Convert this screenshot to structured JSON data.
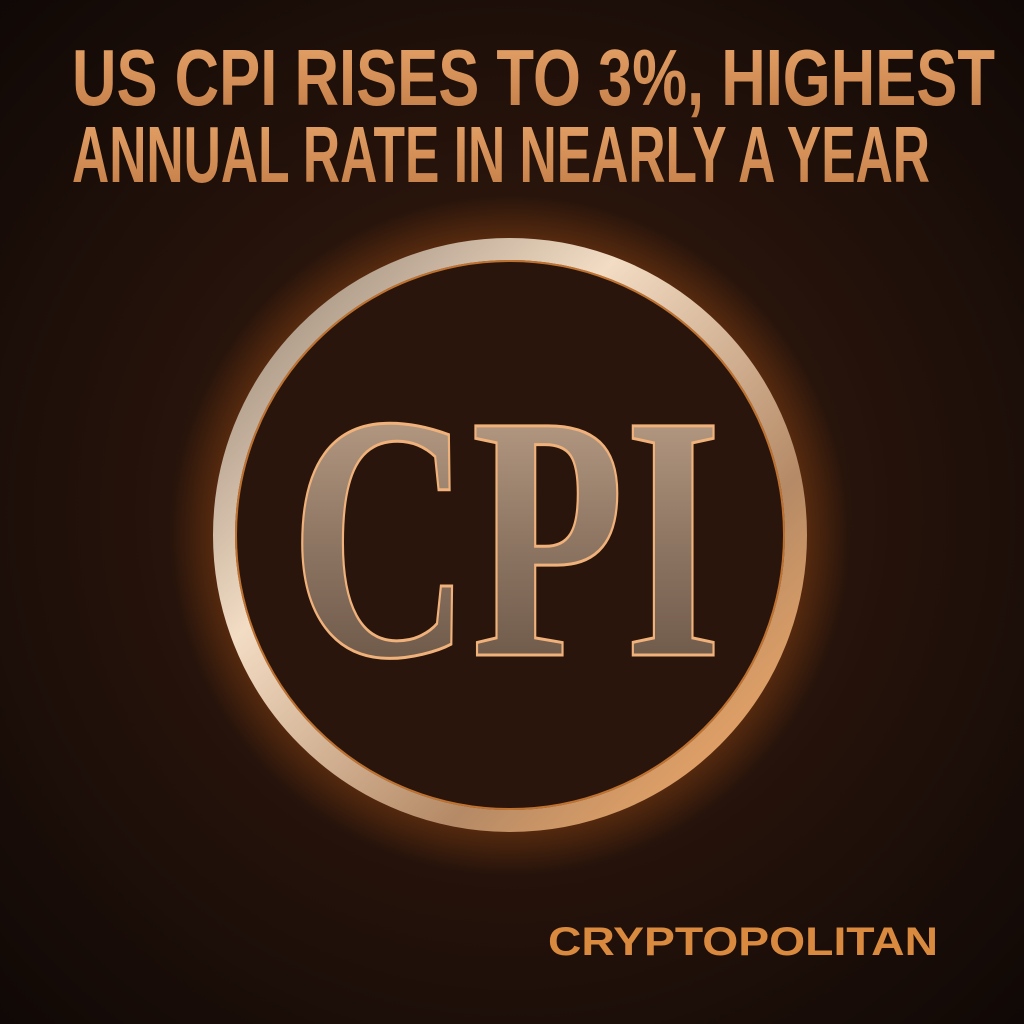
{
  "headline": {
    "lines": [
      "US CPI RISES TO 3%, HIGHEST",
      "ANNUAL RATE IN NEARLY A YEAR"
    ]
  },
  "emblem": {
    "text": "CPI"
  },
  "brand": {
    "name": "CRYPTOPOLITAN"
  }
}
